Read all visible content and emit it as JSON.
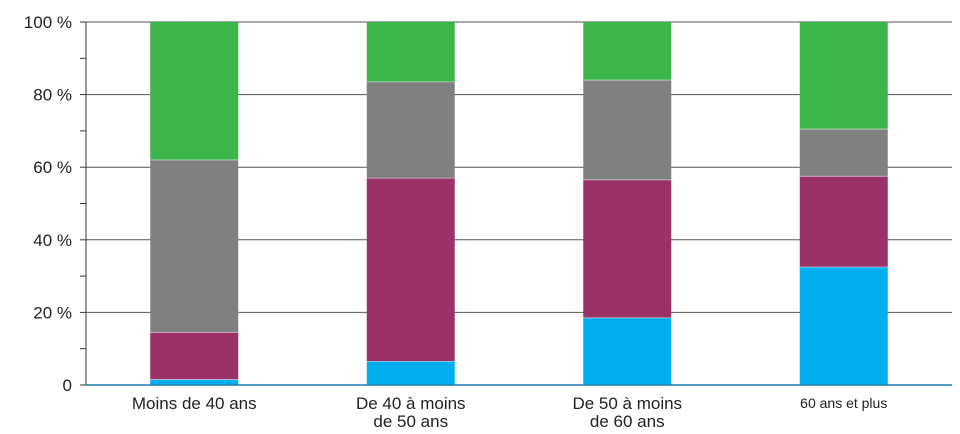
{
  "chart_data": {
    "type": "bar",
    "stacked": true,
    "normalized": true,
    "categories": [
      [
        "Moins de 40 ans"
      ],
      [
        "De 40 à moins",
        "de 50 ans"
      ],
      [
        "De 50 à moins",
        "de 60 ans"
      ],
      [
        "60 ans et plus"
      ]
    ],
    "series": [
      {
        "color": "#00aeef",
        "values": [
          1.5,
          6.5,
          18.5,
          32.5
        ]
      },
      {
        "color": "#993366",
        "values": [
          13,
          50.5,
          38,
          25
        ]
      },
      {
        "color": "#808080",
        "values": [
          47.5,
          26.5,
          27.5,
          13
        ]
      },
      {
        "color": "#3cb54a",
        "values": [
          38,
          16.5,
          16,
          29.5
        ]
      }
    ],
    "yticks": [
      "0",
      "20 %",
      "40 %",
      "60 %",
      "80 %",
      "100 %"
    ],
    "ylim": [
      0,
      100
    ],
    "grid": true,
    "legend": "none",
    "title": "",
    "xlabel": "",
    "ylabel": ""
  }
}
